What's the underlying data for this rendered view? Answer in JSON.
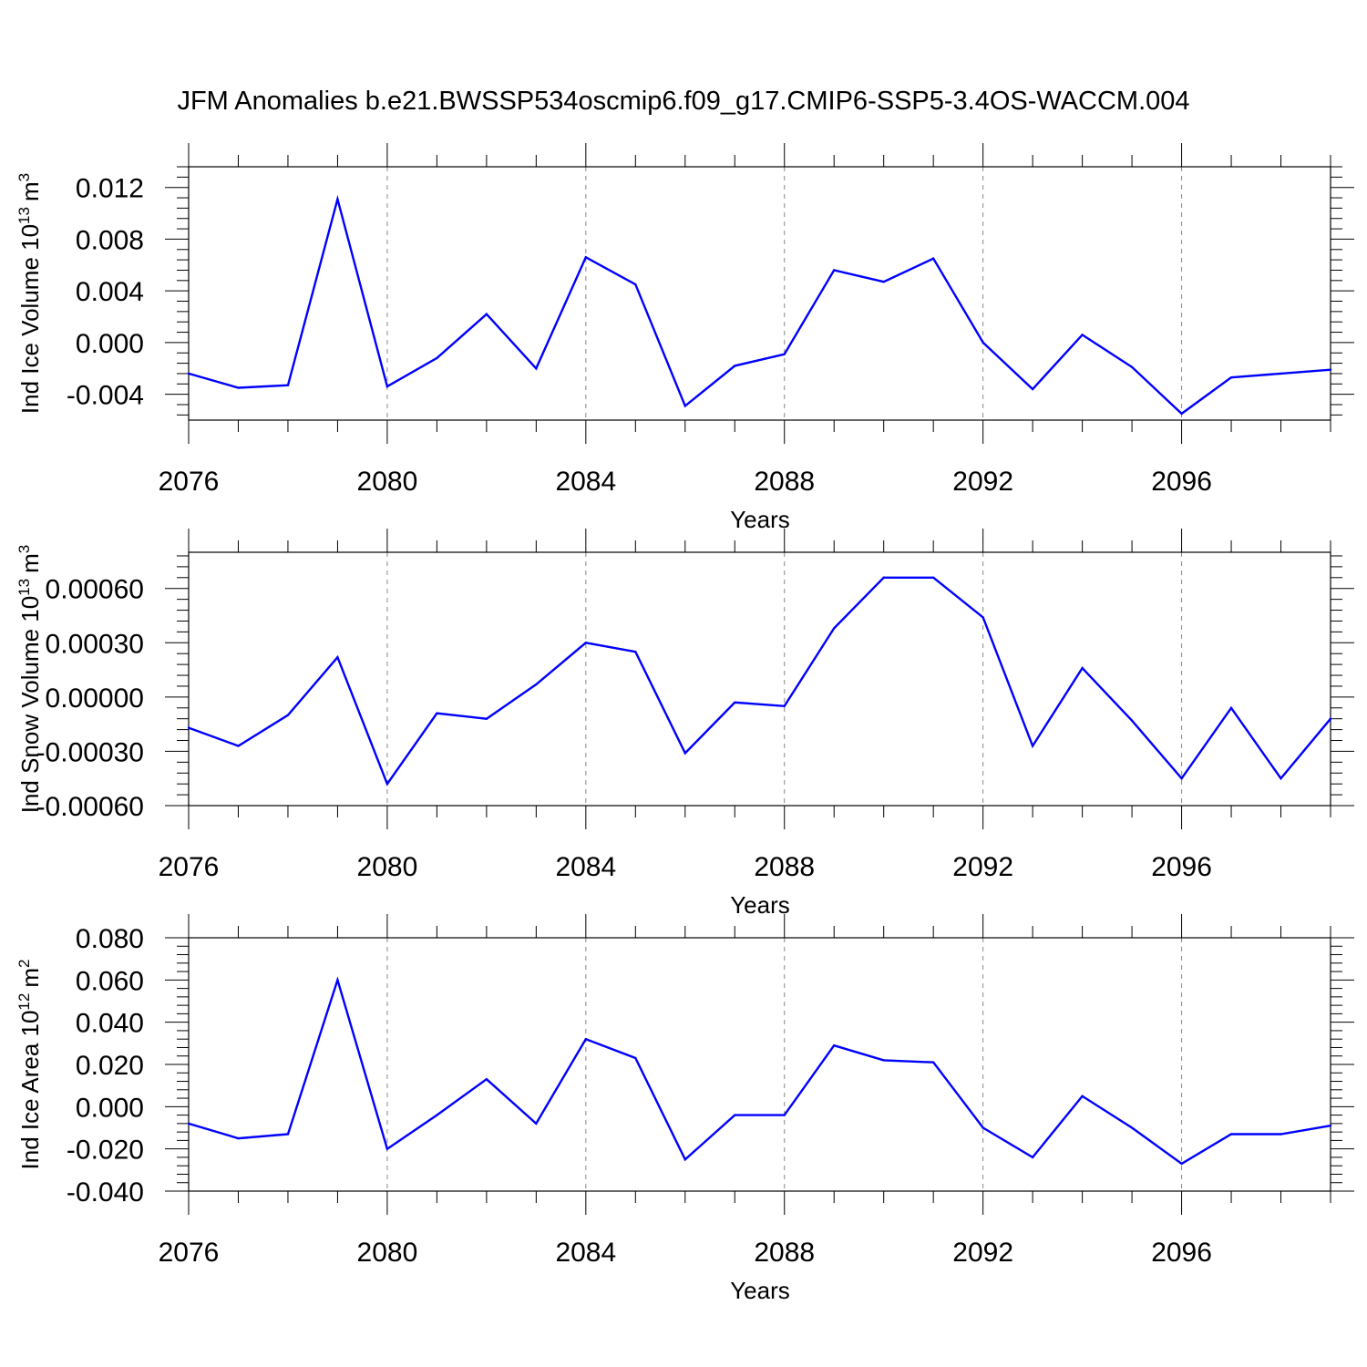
{
  "figure": {
    "title": "JFM Anomalies b.e21.BWSSP534oscmip6.f09_g17.CMIP6-SSP5-3.4OS-WACCM.004"
  },
  "style": {
    "line_color": "#0000ff",
    "axis_color": "#000000",
    "grid_color": "#888888"
  },
  "chart_data": [
    {
      "type": "line",
      "xlabel": "Years",
      "ylabel": "Ind Ice Volume 10",
      "ylabel_exp": "13",
      "ylabel_unit": "m",
      "ylabel_unit_exp": "3",
      "xlim": [
        2076,
        2099
      ],
      "ylim": [
        -0.006,
        0.0136
      ],
      "xticks": [
        2076,
        2080,
        2084,
        2088,
        2092,
        2096
      ],
      "xtick_labels": [
        "2076",
        "2080",
        "2084",
        "2088",
        "2092",
        "2096"
      ],
      "yticks": [
        -0.004,
        0.0,
        0.004,
        0.008,
        0.012
      ],
      "ytick_labels": [
        "-0.004",
        "0.000",
        "0.004",
        "0.008",
        "0.012"
      ],
      "grid": "vertical dashed at major x ticks",
      "x": [
        2076,
        2077,
        2078,
        2079,
        2080,
        2081,
        2082,
        2083,
        2084,
        2085,
        2086,
        2087,
        2088,
        2089,
        2090,
        2091,
        2092,
        2093,
        2094,
        2095,
        2096,
        2097,
        2098,
        2099
      ],
      "values": [
        -0.0024,
        -0.0035,
        -0.0033,
        0.0111,
        -0.0034,
        -0.0012,
        0.0022,
        -0.002,
        0.0066,
        0.0045,
        -0.0049,
        -0.0018,
        -0.0009,
        0.0056,
        0.0047,
        0.0065,
        0.0,
        -0.0036,
        0.0006,
        -0.0019,
        -0.0055,
        -0.0027,
        -0.0024,
        -0.0021
      ]
    },
    {
      "type": "line",
      "xlabel": "Years",
      "ylabel": "Ind Snow Volume 10",
      "ylabel_exp": "13",
      "ylabel_unit": "m",
      "ylabel_unit_exp": "3",
      "xlim": [
        2076,
        2099
      ],
      "ylim": [
        -0.0006,
        0.0008
      ],
      "xticks": [
        2076,
        2080,
        2084,
        2088,
        2092,
        2096
      ],
      "xtick_labels": [
        "2076",
        "2080",
        "2084",
        "2088",
        "2092",
        "2096"
      ],
      "yticks": [
        -0.0006,
        -0.0003,
        0.0,
        0.0003,
        0.0006
      ],
      "ytick_labels": [
        "-0.00060",
        "-0.00030",
        "0.00000",
        "0.00030",
        "0.00060"
      ],
      "grid": "vertical dashed at major x ticks",
      "x": [
        2076,
        2077,
        2078,
        2079,
        2080,
        2081,
        2082,
        2083,
        2084,
        2085,
        2086,
        2087,
        2088,
        2089,
        2090,
        2091,
        2092,
        2093,
        2094,
        2095,
        2096,
        2097,
        2098,
        2099
      ],
      "values": [
        -0.00017,
        -0.00027,
        -0.0001,
        0.00022,
        -0.00048,
        -9e-05,
        -0.00012,
        7e-05,
        0.0003,
        0.00025,
        -0.00031,
        -3e-05,
        -5e-05,
        0.00038,
        0.00066,
        0.00066,
        0.00044,
        -0.00027,
        0.00016,
        -0.00013,
        -0.00045,
        -6e-05,
        -0.00045,
        -0.00012
      ]
    },
    {
      "type": "line",
      "xlabel": "Years",
      "ylabel": "Ind Ice Area 10",
      "ylabel_exp": "12",
      "ylabel_unit": "m",
      "ylabel_unit_exp": "2",
      "xlim": [
        2076,
        2099
      ],
      "ylim": [
        -0.04,
        0.08
      ],
      "xticks": [
        2076,
        2080,
        2084,
        2088,
        2092,
        2096
      ],
      "xtick_labels": [
        "2076",
        "2080",
        "2084",
        "2088",
        "2092",
        "2096"
      ],
      "yticks": [
        -0.04,
        -0.02,
        0.0,
        0.02,
        0.04,
        0.06,
        0.08
      ],
      "ytick_labels": [
        "-0.040",
        "-0.020",
        "0.000",
        "0.020",
        "0.040",
        "0.060",
        "0.080"
      ],
      "grid": "vertical dashed at major x ticks",
      "x": [
        2076,
        2077,
        2078,
        2079,
        2080,
        2081,
        2082,
        2083,
        2084,
        2085,
        2086,
        2087,
        2088,
        2089,
        2090,
        2091,
        2092,
        2093,
        2094,
        2095,
        2096,
        2097,
        2098,
        2099
      ],
      "values": [
        -0.008,
        -0.015,
        -0.013,
        0.06,
        -0.02,
        -0.004,
        0.013,
        -0.008,
        0.032,
        0.023,
        -0.025,
        -0.004,
        -0.004,
        0.029,
        0.022,
        0.021,
        -0.01,
        -0.024,
        0.005,
        -0.01,
        -0.027,
        -0.013,
        -0.013,
        -0.009
      ]
    }
  ]
}
